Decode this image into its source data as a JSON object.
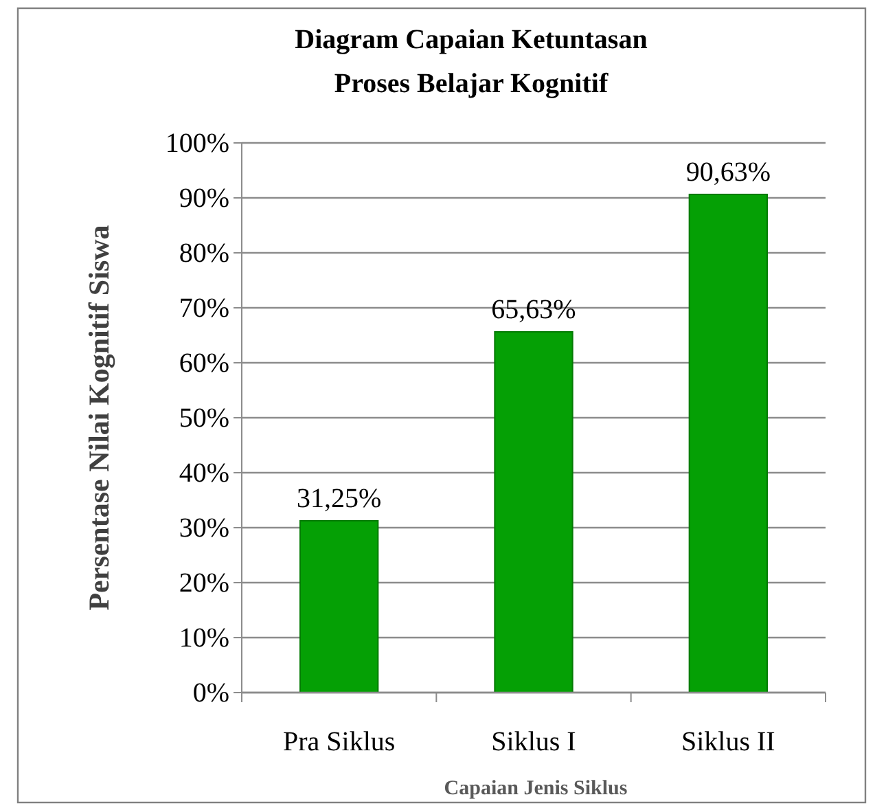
{
  "chart_data": {
    "type": "bar",
    "title": "Diagram Capaian Ketuntasan\nProses Belajar Kognitif",
    "xlabel": "Capaian Jenis Siklus",
    "ylabel": "Persentase Nilai Kognitif Siswa",
    "categories": [
      "Pra Siklus",
      "Siklus I",
      "Siklus II"
    ],
    "values": [
      31.25,
      65.63,
      90.63
    ],
    "color": "#05a005",
    "value_labels": [
      "31,25%",
      "65,63%",
      "90,63%"
    ],
    "ylim": [
      0,
      100
    ],
    "yticks": [
      {
        "value": 0,
        "label": "0%"
      },
      {
        "value": 10,
        "label": "10%"
      },
      {
        "value": 20,
        "label": "20%"
      },
      {
        "value": 30,
        "label": "30%"
      },
      {
        "value": 40,
        "label": "40%"
      },
      {
        "value": 50,
        "label": "50%"
      },
      {
        "value": 60,
        "label": "60%"
      },
      {
        "value": 70,
        "label": "70%"
      },
      {
        "value": 80,
        "label": "80%"
      },
      {
        "value": 90,
        "label": "90%"
      },
      {
        "value": 100,
        "label": "100%"
      }
    ],
    "grid": "y"
  }
}
